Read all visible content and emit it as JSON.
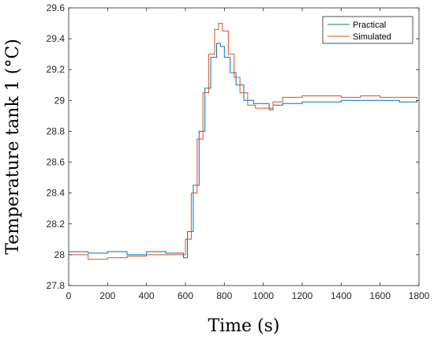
{
  "chart_data": {
    "type": "line",
    "title": "",
    "xlabel": "Time (s)",
    "ylabel": "Temperature tank 1 (°C)",
    "xlim": [
      0,
      1800
    ],
    "ylim": [
      27.8,
      29.6
    ],
    "xticks": [
      0,
      200,
      400,
      600,
      800,
      1000,
      1200,
      1400,
      1600,
      1800
    ],
    "xtick_labels": [
      "0",
      "200",
      "400",
      "600",
      "800",
      "1000",
      "1200",
      "1400",
      "1600",
      "1800"
    ],
    "yticks": [
      27.8,
      28,
      28.2,
      28.4,
      28.6,
      28.8,
      29,
      29.2,
      29.4,
      29.6
    ],
    "ytick_labels": [
      "27.8",
      "28",
      "28.2",
      "28.4",
      "28.6",
      "28.8",
      "29",
      "29.2",
      "29.4",
      "29.6"
    ],
    "grid": false,
    "legend_position": "top-right",
    "series": [
      {
        "name": "Practical",
        "color": "#0072BD",
        "x": [
          0,
          100,
          200,
          300,
          400,
          500,
          590,
          610,
          640,
          670,
          700,
          730,
          760,
          780,
          800,
          830,
          860,
          900,
          950,
          1000,
          1030,
          1050,
          1100,
          1200,
          1300,
          1400,
          1500,
          1600,
          1700,
          1790
        ],
        "y": [
          28.02,
          28.01,
          28.02,
          28.0,
          28.02,
          28.01,
          27.98,
          28.15,
          28.45,
          28.8,
          29.08,
          29.28,
          29.37,
          29.35,
          29.28,
          29.18,
          29.1,
          29.0,
          28.98,
          28.98,
          28.94,
          28.97,
          28.98,
          28.99,
          28.99,
          29.0,
          29.0,
          29.0,
          28.99,
          29.0
        ]
      },
      {
        "name": "Simulated",
        "color": "#D95319",
        "x": [
          0,
          100,
          200,
          300,
          400,
          500,
          580,
          600,
          630,
          660,
          690,
          720,
          750,
          770,
          790,
          820,
          850,
          880,
          920,
          960,
          1000,
          1050,
          1100,
          1200,
          1300,
          1400,
          1500,
          1600,
          1700,
          1790
        ],
        "y": [
          28.0,
          27.97,
          27.98,
          27.99,
          28.0,
          28.0,
          28.0,
          28.1,
          28.4,
          28.75,
          29.05,
          29.3,
          29.46,
          29.5,
          29.45,
          29.3,
          29.15,
          29.05,
          28.97,
          28.95,
          28.95,
          28.99,
          29.02,
          29.03,
          29.03,
          29.02,
          29.03,
          29.02,
          29.02,
          29.01
        ]
      }
    ]
  }
}
